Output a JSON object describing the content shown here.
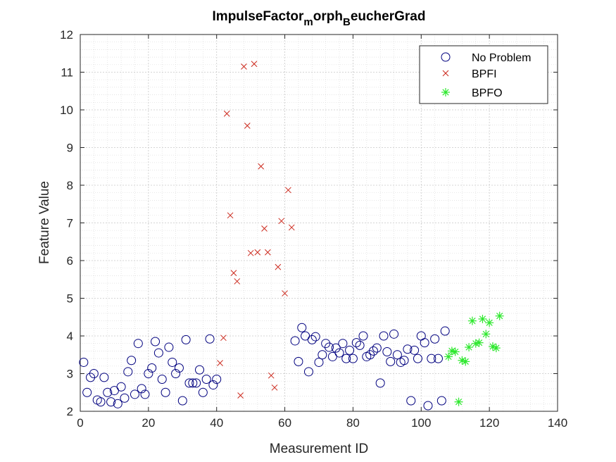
{
  "chart_data": {
    "type": "scatter",
    "title_parts": {
      "base": "ImpulseFactor",
      "sub1": "m",
      "mid": "orph",
      "sub2": "B",
      "end": "eucherGrad"
    },
    "xlabel": "Measurement ID",
    "ylabel": "Feature Value",
    "xlim": [
      0,
      140
    ],
    "ylim": [
      2,
      12
    ],
    "xticks": [
      "0",
      "20",
      "40",
      "60",
      "80",
      "100",
      "120",
      "140"
    ],
    "yticks": [
      "2",
      "3",
      "4",
      "5",
      "6",
      "7",
      "8",
      "9",
      "10",
      "11",
      "12"
    ],
    "grid": true,
    "minor_grid": true,
    "legend_position": "top-right",
    "colors": {
      "no_problem": "#00007f",
      "bpfi": "#cc2a1e",
      "bpfo": "#2ee82e",
      "axis": "#262626",
      "grid": "#dcdcdc"
    },
    "series": [
      {
        "name": "No Problem",
        "marker": "circle",
        "x": [
          1,
          2,
          3,
          4,
          5,
          6,
          7,
          8,
          9,
          10,
          11,
          12,
          13,
          14,
          15,
          16,
          17,
          18,
          19,
          20,
          21,
          22,
          23,
          24,
          25,
          26,
          27,
          28,
          29,
          30,
          31,
          32,
          33,
          34,
          35,
          36,
          37,
          38,
          39,
          40,
          63,
          64,
          65,
          66,
          67,
          68,
          69,
          70,
          71,
          72,
          73,
          74,
          75,
          76,
          77,
          78,
          79,
          80,
          81,
          82,
          83,
          84,
          85,
          86,
          87,
          88,
          89,
          90,
          91,
          92,
          93,
          94,
          95,
          96,
          97,
          98,
          99,
          100,
          101,
          102,
          103,
          104,
          105,
          106,
          107
        ],
        "y": [
          3.3,
          2.5,
          2.9,
          3.0,
          2.3,
          2.25,
          2.9,
          2.5,
          2.25,
          2.55,
          2.2,
          2.65,
          2.35,
          3.05,
          3.35,
          2.45,
          3.8,
          2.6,
          2.45,
          3.0,
          3.15,
          3.85,
          3.55,
          2.85,
          2.5,
          3.7,
          3.3,
          3.0,
          3.15,
          2.28,
          3.9,
          2.75,
          2.75,
          2.75,
          3.1,
          2.5,
          2.85,
          3.92,
          2.7,
          2.85,
          3.87,
          3.32,
          4.22,
          4.0,
          3.05,
          3.9,
          3.98,
          3.3,
          3.5,
          3.8,
          3.7,
          3.45,
          3.68,
          3.55,
          3.8,
          3.4,
          3.62,
          3.4,
          3.82,
          3.75,
          4.0,
          3.45,
          3.5,
          3.6,
          3.68,
          2.75,
          4.0,
          3.58,
          3.32,
          4.05,
          3.5,
          3.3,
          3.35,
          3.65,
          2.28,
          3.62,
          3.4,
          4.0,
          3.82,
          2.15,
          3.4,
          3.92,
          3.4,
          2.28,
          4.13
        ]
      },
      {
        "name": "BPFI",
        "marker": "x",
        "x": [
          41,
          42,
          43,
          44,
          45,
          46,
          47,
          48,
          49,
          50,
          51,
          52,
          53,
          54,
          55,
          56,
          57,
          58,
          59,
          60,
          61,
          62
        ],
        "y": [
          3.28,
          3.95,
          9.9,
          7.2,
          5.67,
          5.45,
          2.42,
          11.15,
          9.58,
          6.2,
          11.22,
          6.22,
          8.5,
          6.85,
          6.22,
          2.95,
          2.63,
          5.83,
          7.05,
          5.13,
          7.87,
          6.88
        ]
      },
      {
        "name": "BPFO",
        "marker": "asterisk",
        "x": [
          108,
          109,
          110,
          111,
          112,
          113,
          114,
          115,
          116,
          117,
          118,
          119,
          120,
          121,
          122,
          123
        ],
        "y": [
          3.45,
          3.6,
          3.58,
          2.25,
          3.35,
          3.32,
          3.7,
          4.4,
          3.8,
          3.82,
          4.45,
          4.05,
          4.35,
          3.72,
          3.68,
          4.53
        ]
      }
    ]
  }
}
